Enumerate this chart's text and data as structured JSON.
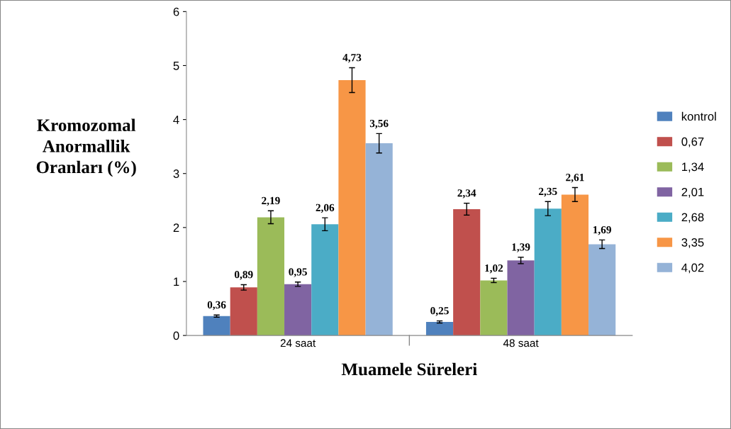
{
  "chart_data": {
    "type": "bar",
    "xlabel": "Muamele Süreleri",
    "ylabel": "Kromozomal\nAnormallik\nOranları (%)",
    "categories": [
      "24 saat",
      "48 saat"
    ],
    "series": [
      {
        "name": "kontrol",
        "color": "#4f81bd",
        "values": [
          0.36,
          0.25
        ],
        "errors": [
          0.02,
          0.02
        ],
        "value_labels": [
          "0,36",
          "0,25"
        ]
      },
      {
        "name": "0,67",
        "color": "#c0504d",
        "values": [
          0.89,
          2.34
        ],
        "errors": [
          0.05,
          0.11
        ],
        "value_labels": [
          "0,89",
          "2,34"
        ]
      },
      {
        "name": "1,34",
        "color": "#9bbb59",
        "values": [
          2.19,
          1.02
        ],
        "errors": [
          0.12,
          0.04
        ],
        "value_labels": [
          "2,19",
          "1,02"
        ]
      },
      {
        "name": "2,01",
        "color": "#8064a2",
        "values": [
          0.95,
          1.39
        ],
        "errors": [
          0.04,
          0.06
        ],
        "value_labels": [
          "0,95",
          "1,39"
        ]
      },
      {
        "name": "2,68",
        "color": "#4bacc6",
        "values": [
          2.06,
          2.35
        ],
        "errors": [
          0.12,
          0.13
        ],
        "value_labels": [
          "2,06",
          "2,35"
        ]
      },
      {
        "name": "3,35",
        "color": "#f79646",
        "values": [
          4.73,
          2.61
        ],
        "errors": [
          0.23,
          0.13
        ],
        "value_labels": [
          "4,73",
          "2,61"
        ]
      },
      {
        "name": "4,02",
        "color": "#95b3d7",
        "values": [
          3.56,
          1.69
        ],
        "errors": [
          0.18,
          0.08
        ],
        "value_labels": [
          "3,56",
          "1,69"
        ]
      }
    ],
    "ylim": [
      0,
      6
    ],
    "yticks": [
      0,
      1,
      2,
      3,
      4,
      5,
      6
    ],
    "grid": false,
    "legend": "right"
  }
}
